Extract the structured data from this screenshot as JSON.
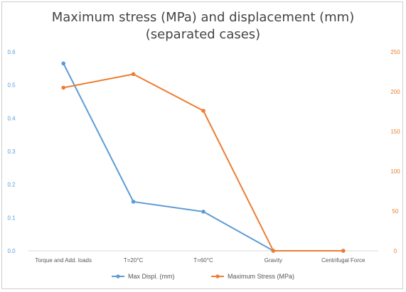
{
  "chart_data": {
    "type": "line",
    "title": "Maximum stress (MPa) and displacement (mm)",
    "subtitle": "(separated cases)",
    "categories": [
      "Torque and Add. loads",
      "T=20°C",
      "T=60°C",
      "Gravity",
      "Centrifugal Force"
    ],
    "series": [
      {
        "name": "Max Displ. (mm)",
        "axis": "left",
        "color": "#5b9bd5",
        "values": [
          0.565,
          0.148,
          0.118,
          0.0,
          0.0
        ]
      },
      {
        "name": "Maximum Stress (MPa)",
        "axis": "right",
        "color": "#ed7d31",
        "values": [
          205,
          222,
          176,
          0,
          0
        ]
      }
    ],
    "y_left": {
      "ylim": [
        0,
        0.6
      ],
      "ticks": [
        "0.0",
        "0.1",
        "0.2",
        "0.3",
        "0.4",
        "0.5",
        "0.6"
      ],
      "color": "#5b9bd5"
    },
    "y_right": {
      "ylim": [
        0,
        250
      ],
      "ticks": [
        "0",
        "50",
        "100",
        "150",
        "200",
        "250"
      ],
      "color": "#ed7d31"
    },
    "grid": false,
    "legend": "bottom"
  }
}
